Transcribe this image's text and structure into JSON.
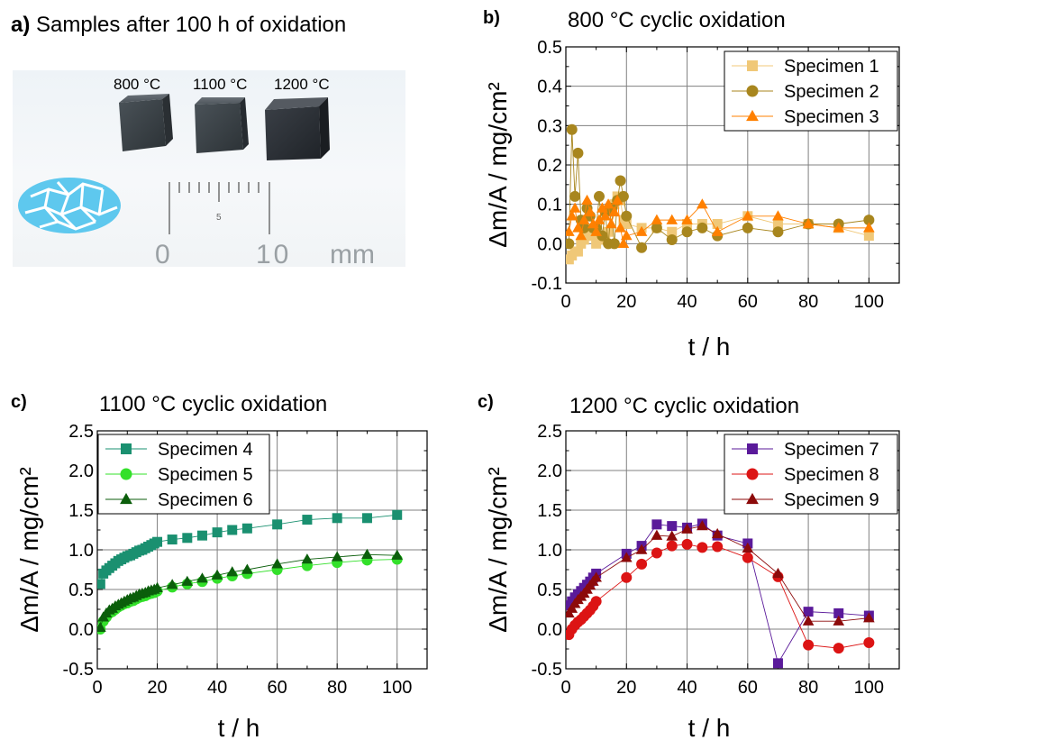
{
  "panel_a": {
    "label": "a)",
    "title": "Samples after 100 h of oxidation",
    "temps": [
      "800 °C",
      "1100 °C",
      "1200 °C"
    ],
    "ruler": {
      "mid": "5",
      "zero": "0",
      "ten": "10",
      "unit": "mm"
    }
  },
  "colors": {
    "s1": "#f0c878",
    "s2": "#a8861e",
    "s3": "#ff8000",
    "s4": "#1a9070",
    "s5": "#33e02a",
    "s6": "#0b5e0b",
    "s7": "#5a1a9a",
    "s8": "#dc1414",
    "s9": "#8c0a0a",
    "grid": "#808080",
    "blue_pattern": "#5ec8ee"
  },
  "chart_data": [
    {
      "type": "scatter",
      "panel_label": "b)",
      "title": "800 °C cyclic oxidation",
      "xlabel": "t / h",
      "ylabel": "Δm/A / mg/cm²",
      "xlim": [
        0,
        110
      ],
      "ylim": [
        -0.1,
        0.5
      ],
      "xticks": [
        0,
        20,
        40,
        60,
        80,
        100
      ],
      "yticks": [
        -0.1,
        0.0,
        0.1,
        0.2,
        0.3,
        0.4,
        0.5
      ],
      "ytick_labels": [
        "-0.1",
        "0.0",
        "0.1",
        "0.2",
        "0.3",
        "0.4",
        "0.5"
      ],
      "legend_position": "top-right",
      "series": [
        {
          "name": "Specimen 1",
          "color": "#f0c878",
          "marker": "square",
          "x": [
            1,
            2,
            3,
            4,
            5,
            6,
            7,
            8,
            9,
            10,
            11,
            12,
            13,
            14,
            15,
            16,
            17,
            18,
            19,
            20,
            25,
            30,
            35,
            40,
            45,
            50,
            60,
            70,
            80,
            90,
            100
          ],
          "y": [
            -0.04,
            -0.03,
            -0.02,
            -0.02,
            0.0,
            0.01,
            0.02,
            0.03,
            0.02,
            0.0,
            0.01,
            0.01,
            0.02,
            0.03,
            0.09,
            0.1,
            0.12,
            0.11,
            0.06,
            0.05,
            0.04,
            0.04,
            0.03,
            0.05,
            0.05,
            0.05,
            0.07,
            0.05,
            0.05,
            0.04,
            0.02
          ]
        },
        {
          "name": "Specimen 2",
          "color": "#a8861e",
          "marker": "circle",
          "x": [
            1,
            2,
            3,
            4,
            5,
            6,
            7,
            8,
            9,
            10,
            11,
            12,
            13,
            14,
            15,
            16,
            17,
            18,
            19,
            20,
            25,
            30,
            35,
            40,
            45,
            50,
            60,
            70,
            80,
            90,
            100
          ],
          "y": [
            0.0,
            0.29,
            0.12,
            0.23,
            0.06,
            0.04,
            0.09,
            0.07,
            0.04,
            0.04,
            0.12,
            0.02,
            0.08,
            0.0,
            0.09,
            0.0,
            0.11,
            0.16,
            0.12,
            0.07,
            -0.01,
            0.04,
            0.01,
            0.03,
            0.04,
            0.02,
            0.04,
            0.03,
            0.05,
            0.05,
            0.06
          ]
        },
        {
          "name": "Specimen 3",
          "color": "#ff8000",
          "marker": "triangle",
          "x": [
            1,
            2,
            3,
            4,
            5,
            6,
            7,
            8,
            9,
            10,
            11,
            12,
            13,
            14,
            15,
            16,
            17,
            18,
            19,
            20,
            25,
            30,
            35,
            40,
            45,
            50,
            60,
            70,
            80,
            90,
            100
          ],
          "y": [
            0.03,
            0.07,
            0.09,
            0.04,
            0.02,
            0.06,
            0.11,
            0.08,
            0.05,
            0.03,
            0.06,
            0.09,
            0.07,
            0.1,
            0.05,
            0.08,
            0.11,
            0.04,
            0.0,
            0.02,
            0.03,
            0.06,
            0.06,
            0.06,
            0.1,
            0.03,
            0.07,
            0.07,
            0.05,
            0.04,
            0.04
          ]
        }
      ]
    },
    {
      "type": "line",
      "panel_label": "c)",
      "title": "1100 °C cyclic oxidation",
      "xlabel": "t / h",
      "ylabel": "Δm/A / mg/cm²",
      "xlim": [
        0,
        110
      ],
      "ylim": [
        -0.5,
        2.5
      ],
      "xticks": [
        0,
        20,
        40,
        60,
        80,
        100
      ],
      "yticks": [
        -0.5,
        0.0,
        0.5,
        1.0,
        1.5,
        2.0,
        2.5
      ],
      "ytick_labels": [
        "-0.5",
        "0.0",
        "0.5",
        "1.0",
        "1.5",
        "2.0",
        "2.5"
      ],
      "legend_position": "top-left",
      "series": [
        {
          "name": "Specimen 4",
          "color": "#1a9070",
          "marker": "square",
          "x": [
            1,
            2,
            3,
            4,
            5,
            6,
            7,
            8,
            9,
            10,
            11,
            12,
            13,
            14,
            15,
            16,
            17,
            18,
            19,
            20,
            25,
            30,
            35,
            40,
            45,
            50,
            60,
            70,
            80,
            90,
            100
          ],
          "y": [
            0.57,
            0.7,
            0.74,
            0.77,
            0.8,
            0.83,
            0.86,
            0.88,
            0.9,
            0.92,
            0.93,
            0.95,
            0.97,
            0.99,
            1.0,
            1.02,
            1.04,
            1.06,
            1.08,
            1.1,
            1.13,
            1.15,
            1.18,
            1.22,
            1.25,
            1.27,
            1.32,
            1.38,
            1.4,
            1.4,
            1.44
          ]
        },
        {
          "name": "Specimen 5",
          "color": "#33e02a",
          "marker": "circle",
          "x": [
            1,
            2,
            3,
            4,
            5,
            6,
            7,
            8,
            9,
            10,
            11,
            12,
            13,
            14,
            15,
            16,
            17,
            18,
            19,
            20,
            25,
            30,
            35,
            40,
            45,
            50,
            60,
            70,
            80,
            90,
            100
          ],
          "y": [
            0.0,
            0.1,
            0.15,
            0.2,
            0.22,
            0.25,
            0.28,
            0.3,
            0.32,
            0.33,
            0.35,
            0.36,
            0.38,
            0.4,
            0.41,
            0.42,
            0.44,
            0.45,
            0.46,
            0.48,
            0.53,
            0.57,
            0.6,
            0.64,
            0.67,
            0.7,
            0.75,
            0.8,
            0.84,
            0.87,
            0.88
          ]
        },
        {
          "name": "Specimen 6",
          "color": "#0b5e0b",
          "marker": "triangle",
          "x": [
            1,
            2,
            3,
            4,
            5,
            6,
            7,
            8,
            9,
            10,
            11,
            12,
            13,
            14,
            15,
            16,
            17,
            18,
            19,
            20,
            25,
            30,
            35,
            40,
            45,
            50,
            60,
            70,
            80,
            90,
            100
          ],
          "y": [
            0.02,
            0.15,
            0.2,
            0.24,
            0.26,
            0.29,
            0.31,
            0.33,
            0.35,
            0.37,
            0.39,
            0.4,
            0.42,
            0.44,
            0.45,
            0.46,
            0.48,
            0.49,
            0.5,
            0.52,
            0.56,
            0.6,
            0.64,
            0.68,
            0.72,
            0.75,
            0.82,
            0.88,
            0.91,
            0.94,
            0.93
          ]
        }
      ]
    },
    {
      "type": "line",
      "panel_label": "c)",
      "title": "1200 °C cyclic oxidation",
      "xlabel": "t / h",
      "ylabel": "Δm/A / mg/cm²",
      "xlim": [
        0,
        110
      ],
      "ylim": [
        -0.5,
        2.5
      ],
      "xticks": [
        0,
        20,
        40,
        60,
        80,
        100
      ],
      "yticks": [
        -0.5,
        0.0,
        0.5,
        1.0,
        1.5,
        2.0,
        2.5
      ],
      "ytick_labels": [
        "-0.5",
        "0.0",
        "0.5",
        "1.0",
        "1.5",
        "2.0",
        "2.5"
      ],
      "legend_position": "top-right",
      "series": [
        {
          "name": "Specimen 7",
          "color": "#5a1a9a",
          "marker": "square",
          "x": [
            1,
            2,
            3,
            4,
            5,
            6,
            7,
            8,
            9,
            10,
            20,
            25,
            30,
            35,
            40,
            45,
            50,
            60,
            70,
            80,
            90,
            100
          ],
          "y": [
            0.3,
            0.35,
            0.4,
            0.44,
            0.48,
            0.52,
            0.56,
            0.6,
            0.65,
            0.7,
            0.95,
            1.05,
            1.32,
            1.3,
            1.28,
            1.33,
            1.18,
            1.08,
            -0.43,
            0.22,
            0.2,
            0.17
          ]
        },
        {
          "name": "Specimen 8",
          "color": "#dc1414",
          "marker": "circle",
          "x": [
            1,
            2,
            3,
            4,
            5,
            6,
            7,
            8,
            9,
            10,
            20,
            25,
            30,
            35,
            40,
            45,
            50,
            60,
            70,
            80,
            90,
            100
          ],
          "y": [
            -0.07,
            0.0,
            0.05,
            0.09,
            0.12,
            0.16,
            0.2,
            0.24,
            0.29,
            0.35,
            0.65,
            0.82,
            0.96,
            1.05,
            1.07,
            1.03,
            1.04,
            0.9,
            0.66,
            -0.2,
            -0.24,
            -0.17
          ]
        },
        {
          "name": "Specimen 9",
          "color": "#8c0a0a",
          "marker": "triangle",
          "x": [
            1,
            2,
            3,
            4,
            5,
            6,
            7,
            8,
            9,
            10,
            20,
            25,
            30,
            35,
            40,
            45,
            50,
            60,
            70,
            80,
            90,
            100
          ],
          "y": [
            0.2,
            0.26,
            0.32,
            0.37,
            0.41,
            0.45,
            0.5,
            0.55,
            0.6,
            0.65,
            0.9,
            1.0,
            1.18,
            1.17,
            1.26,
            1.3,
            1.2,
            1.02,
            0.7,
            0.1,
            0.1,
            0.14
          ]
        }
      ]
    }
  ]
}
